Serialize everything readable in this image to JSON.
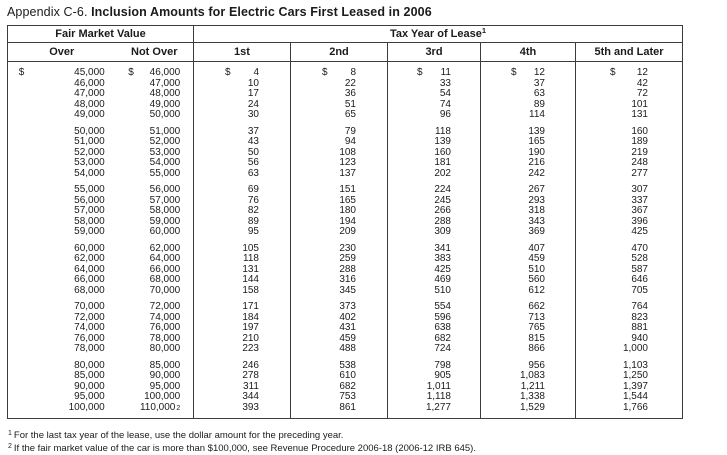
{
  "title": {
    "prefix": "Appendix C-6.",
    "main": "Inclusion Amounts for Electric Cars First Leased in 2006"
  },
  "table": {
    "currency_symbol": "$",
    "header_groups": {
      "fmv": "Fair Market Value",
      "tax_year": "Tax Year of Lease",
      "tax_year_sup": "1"
    },
    "columns": [
      "Over",
      "Not Over",
      "1st",
      "2nd",
      "3rd",
      "4th",
      "5th and Later"
    ],
    "groups": [
      {
        "rows": [
          {
            "dollar": true,
            "cells": [
              "45,000",
              "46,000",
              "4",
              "8",
              "11",
              "12",
              "12"
            ]
          },
          {
            "cells": [
              "46,000",
              "47,000",
              "10",
              "22",
              "33",
              "37",
              "42"
            ]
          },
          {
            "cells": [
              "47,000",
              "48,000",
              "17",
              "36",
              "54",
              "63",
              "72"
            ]
          },
          {
            "cells": [
              "48,000",
              "49,000",
              "24",
              "51",
              "74",
              "89",
              "101"
            ]
          },
          {
            "cells": [
              "49,000",
              "50,000",
              "30",
              "65",
              "96",
              "114",
              "131"
            ]
          }
        ]
      },
      {
        "rows": [
          {
            "cells": [
              "50,000",
              "51,000",
              "37",
              "79",
              "118",
              "139",
              "160"
            ]
          },
          {
            "cells": [
              "51,000",
              "52,000",
              "43",
              "94",
              "139",
              "165",
              "189"
            ]
          },
          {
            "cells": [
              "52,000",
              "53,000",
              "50",
              "108",
              "160",
              "190",
              "219"
            ]
          },
          {
            "cells": [
              "53,000",
              "54,000",
              "56",
              "123",
              "181",
              "216",
              "248"
            ]
          },
          {
            "cells": [
              "54,000",
              "55,000",
              "63",
              "137",
              "202",
              "242",
              "277"
            ]
          }
        ]
      },
      {
        "rows": [
          {
            "cells": [
              "55,000",
              "56,000",
              "69",
              "151",
              "224",
              "267",
              "307"
            ]
          },
          {
            "cells": [
              "56,000",
              "57,000",
              "76",
              "165",
              "245",
              "293",
              "337"
            ]
          },
          {
            "cells": [
              "57,000",
              "58,000",
              "82",
              "180",
              "266",
              "318",
              "367"
            ]
          },
          {
            "cells": [
              "58,000",
              "59,000",
              "89",
              "194",
              "288",
              "343",
              "396"
            ]
          },
          {
            "cells": [
              "59,000",
              "60,000",
              "95",
              "209",
              "309",
              "369",
              "425"
            ]
          }
        ]
      },
      {
        "rows": [
          {
            "cells": [
              "60,000",
              "62,000",
              "105",
              "230",
              "341",
              "407",
              "470"
            ]
          },
          {
            "cells": [
              "62,000",
              "64,000",
              "118",
              "259",
              "383",
              "459",
              "528"
            ]
          },
          {
            "cells": [
              "64,000",
              "66,000",
              "131",
              "288",
              "425",
              "510",
              "587"
            ]
          },
          {
            "cells": [
              "66,000",
              "68,000",
              "144",
              "316",
              "469",
              "560",
              "646"
            ]
          },
          {
            "cells": [
              "68,000",
              "70,000",
              "158",
              "345",
              "510",
              "612",
              "705"
            ]
          }
        ]
      },
      {
        "rows": [
          {
            "cells": [
              "70,000",
              "72,000",
              "171",
              "373",
              "554",
              "662",
              "764"
            ]
          },
          {
            "cells": [
              "72,000",
              "74,000",
              "184",
              "402",
              "596",
              "713",
              "823"
            ]
          },
          {
            "cells": [
              "74,000",
              "76,000",
              "197",
              "431",
              "638",
              "765",
              "881"
            ]
          },
          {
            "cells": [
              "76,000",
              "78,000",
              "210",
              "459",
              "682",
              "815",
              "940"
            ]
          },
          {
            "cells": [
              "78,000",
              "80,000",
              "223",
              "488",
              "724",
              "866",
              "1,000"
            ]
          }
        ]
      },
      {
        "rows": [
          {
            "cells": [
              "80,000",
              "85,000",
              "246",
              "538",
              "798",
              "956",
              "1,103"
            ]
          },
          {
            "cells": [
              "85,000",
              "90,000",
              "278",
              "610",
              "905",
              "1,083",
              "1,250"
            ]
          },
          {
            "cells": [
              "90,000",
              "95,000",
              "311",
              "682",
              "1,011",
              "1,211",
              "1,397"
            ]
          },
          {
            "cells": [
              "95,000",
              "100,000",
              "344",
              "753",
              "1,118",
              "1,338",
              "1,544"
            ]
          },
          {
            "cells": [
              "100,000",
              "110,000",
              "393",
              "861",
              "1,277",
              "1,529",
              "1,766"
            ],
            "sup": {
              "col": 1,
              "marker": "2"
            }
          }
        ]
      }
    ]
  },
  "footnotes": [
    {
      "marker": "1",
      "text": "For the last tax year of the lease, use the dollar amount for the preceding year."
    },
    {
      "marker": "2",
      "text": "If the fair market value of the car is more than $100,000, see Revenue Procedure 2006-18 (2006-12 IRB 645)."
    }
  ]
}
